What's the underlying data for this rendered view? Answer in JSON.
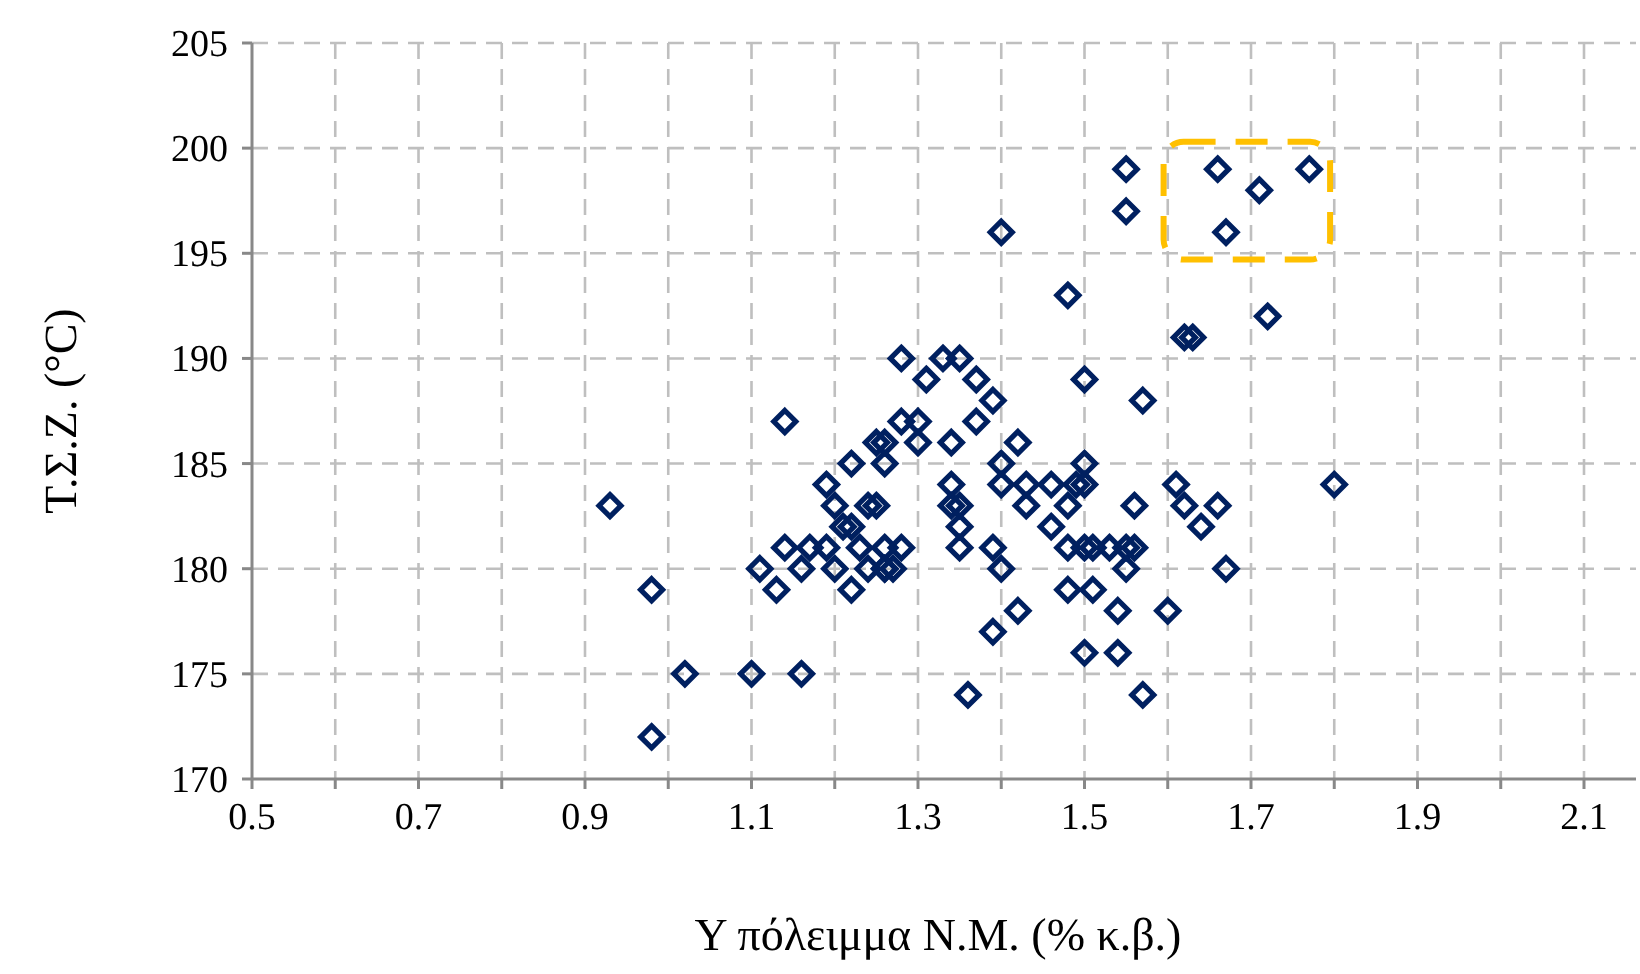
{
  "chart_data": {
    "type": "scatter",
    "xlabel": "Υ πόλειμμα Ν.Μ. (% κ.β.)",
    "ylabel": "Τ.Σ.Ζ. (°C)",
    "marker": "diamond",
    "grid": true,
    "xlim": [
      0.5,
      2.1
    ],
    "ylim": [
      170,
      205
    ],
    "xticks": [
      0.5,
      {
        "value": 0.6,
        "label": null
      },
      0.7,
      {
        "value": 0.8,
        "label": null
      },
      0.9,
      {
        "value": 1.0,
        "label": null
      },
      1.1,
      {
        "value": 1.2,
        "label": null
      },
      1.3,
      {
        "value": 1.4,
        "label": null
      },
      1.5,
      {
        "value": 1.6,
        "label": null
      },
      1.7,
      {
        "value": 1.8,
        "label": null
      },
      1.9,
      {
        "value": 2.0,
        "label": null
      },
      2.1
    ],
    "yticks": [
      170,
      175,
      180,
      185,
      190,
      195,
      200,
      205
    ],
    "series": [
      {
        "color": "#002060",
        "x": [
          0.93,
          0.98,
          0.98,
          1.02,
          1.1,
          1.16,
          1.14,
          1.11,
          1.13,
          1.14,
          1.16,
          1.17,
          1.19,
          1.2,
          1.22,
          1.19,
          1.2,
          1.22,
          1.21,
          1.22,
          1.23,
          1.24,
          1.24,
          1.25,
          1.26,
          1.26,
          1.27,
          1.28,
          1.25,
          1.26,
          1.26,
          1.28,
          1.28,
          1.3,
          1.3,
          1.31,
          1.33,
          1.35,
          1.37,
          1.37,
          1.39,
          1.34,
          1.42,
          1.4,
          1.5,
          1.34,
          1.4,
          1.43,
          1.46,
          1.49,
          1.5,
          1.61,
          1.8,
          1.34,
          1.35,
          1.43,
          1.48,
          1.56,
          1.62,
          1.66,
          1.35,
          1.46,
          1.64,
          1.35,
          1.39,
          1.48,
          1.5,
          1.51,
          1.53,
          1.55,
          1.56,
          1.26,
          1.4,
          1.55,
          1.67,
          1.48,
          1.51,
          1.42,
          1.54,
          1.6,
          1.39,
          1.5,
          1.54,
          1.36,
          1.57,
          1.55,
          1.55,
          1.4,
          1.66,
          1.71,
          1.77,
          1.67,
          1.48,
          1.62,
          1.63,
          1.72,
          1.5,
          1.57
        ],
        "values": [
          183,
          179,
          172,
          175,
          175,
          175,
          187,
          180,
          179,
          181,
          180,
          181,
          181,
          180,
          179,
          184,
          183,
          185,
          182,
          182,
          181,
          180,
          183,
          183,
          181,
          180,
          180,
          181,
          186,
          186,
          185,
          187,
          190,
          187,
          186,
          189,
          190,
          190,
          189,
          187,
          188,
          186,
          186,
          185,
          185,
          184,
          184,
          184,
          184,
          184,
          184,
          184,
          184,
          183,
          183,
          183,
          183,
          183,
          183,
          183,
          182,
          182,
          182,
          181,
          181,
          181,
          181,
          181,
          181,
          181,
          181,
          180,
          180,
          180,
          180,
          179,
          179,
          178,
          178,
          178,
          177,
          176,
          176,
          174,
          174,
          199,
          197,
          196,
          199,
          198,
          199,
          196,
          193,
          191,
          191,
          192,
          189,
          188
        ]
      }
    ]
  }
}
